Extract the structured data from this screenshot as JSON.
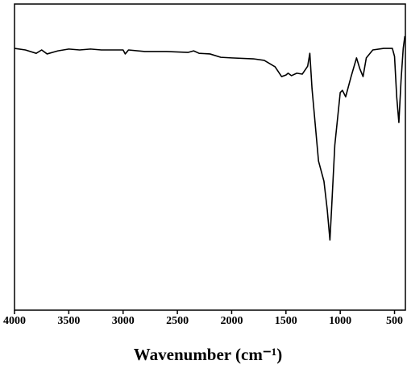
{
  "chart_data": {
    "type": "line",
    "x_label": "Wavenumber (cm⁻¹)",
    "xlim": [
      4000,
      400
    ],
    "xticks": [
      4000,
      3500,
      3000,
      2500,
      2000,
      1500,
      1000,
      500
    ],
    "ylim": [
      0,
      100
    ],
    "series": [
      {
        "color": "#000000",
        "x": [
          4000,
          3900,
          3800,
          3750,
          3700,
          3600,
          3500,
          3400,
          3300,
          3200,
          3100,
          3000,
          2980,
          2950,
          2800,
          2600,
          2400,
          2350,
          2300,
          2200,
          2100,
          2000,
          1800,
          1700,
          1600,
          1540,
          1500,
          1480,
          1450,
          1400,
          1350,
          1300,
          1280,
          1260,
          1200,
          1150,
          1120,
          1095,
          1080,
          1050,
          1000,
          980,
          950,
          900,
          850,
          820,
          790,
          760,
          700,
          600,
          520,
          500,
          480,
          460,
          440,
          420,
          405
        ],
        "values": [
          85.5,
          85.0,
          83.9,
          85.0,
          83.7,
          84.7,
          85.3,
          85.0,
          85.3,
          85.0,
          85.0,
          85.0,
          83.7,
          85.0,
          84.5,
          84.5,
          84.2,
          84.7,
          83.9,
          83.7,
          82.6,
          82.4,
          82.1,
          81.6,
          79.5,
          76.3,
          76.8,
          77.4,
          76.6,
          77.4,
          77.1,
          79.7,
          83.9,
          72.4,
          48.7,
          42.1,
          32.9,
          22.9,
          32.9,
          53.9,
          71.1,
          71.8,
          69.7,
          76.3,
          82.4,
          78.9,
          76.3,
          82.4,
          85.0,
          85.5,
          85.5,
          82.9,
          69.7,
          61.3,
          75.0,
          85.5,
          89.5
        ]
      }
    ]
  }
}
